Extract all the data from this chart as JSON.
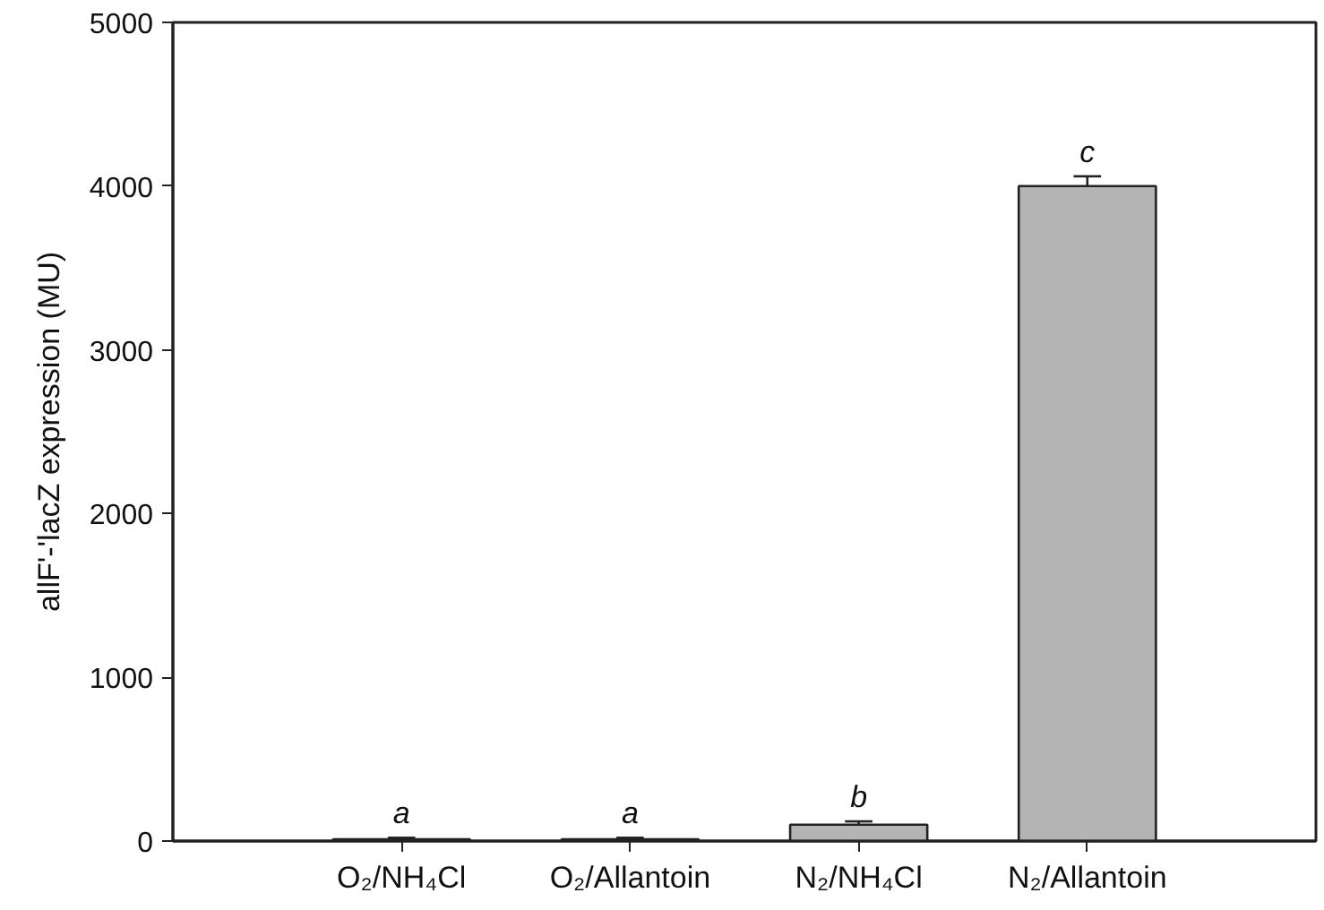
{
  "chart_data": {
    "type": "bar",
    "categories": [
      "O₂/NH₄Cl",
      "O₂/Allantoin",
      "N₂/NH₄Cl",
      "N₂/Allantoin"
    ],
    "values": [
      10,
      10,
      100,
      4000
    ],
    "errors": [
      10,
      10,
      20,
      60
    ],
    "color": "#b4b4b4",
    "ylabel": "allF'-'lacZ expression (MU)",
    "ylim": [
      0,
      5000
    ],
    "yticks": [
      0,
      1000,
      2000,
      3000,
      4000,
      5000
    ],
    "grid": false,
    "annotations": [
      {
        "text": "a",
        "x": "O₂/NH₄Cl",
        "y": 20
      },
      {
        "text": "a",
        "x": "O₂/Allantoin",
        "y": 20
      },
      {
        "text": "b",
        "x": "N₂/NH₄Cl",
        "y": 120
      },
      {
        "text": "c",
        "x": "N₂/Allantoin",
        "y": 4060
      }
    ]
  }
}
